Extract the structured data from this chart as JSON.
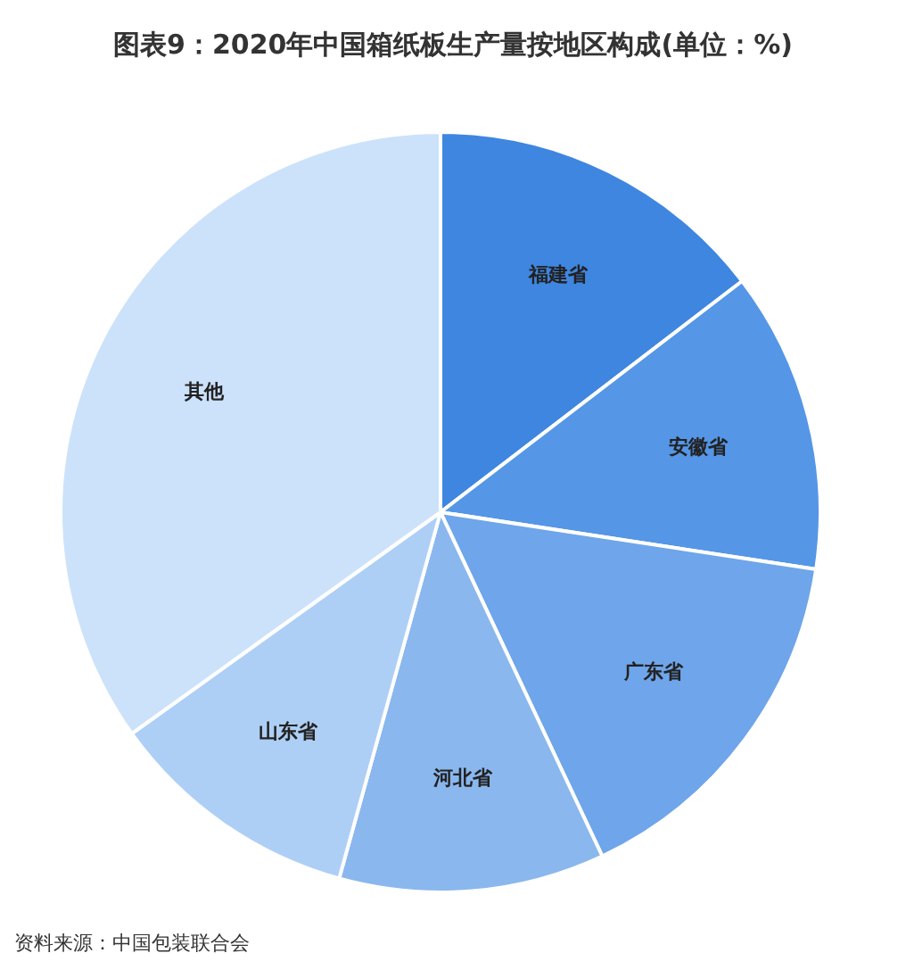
{
  "chart_data": {
    "type": "pie",
    "title": "图表9：2020年中国箱纸板生产量按地区构成(单位：%)",
    "categories": [
      "福建省",
      "安徽省",
      "广东省",
      "河北省",
      "山东省",
      "其他"
    ],
    "values": [
      14.6,
      12.8,
      15.6,
      11.3,
      10.8,
      34.9
    ],
    "colors": [
      "#3f86e0",
      "#5596e6",
      "#6fa5ea",
      "#8ab7ee",
      "#aecff5",
      "#cce2fb"
    ],
    "annotations": [
      "资料来源：中国包装联合会"
    ]
  }
}
